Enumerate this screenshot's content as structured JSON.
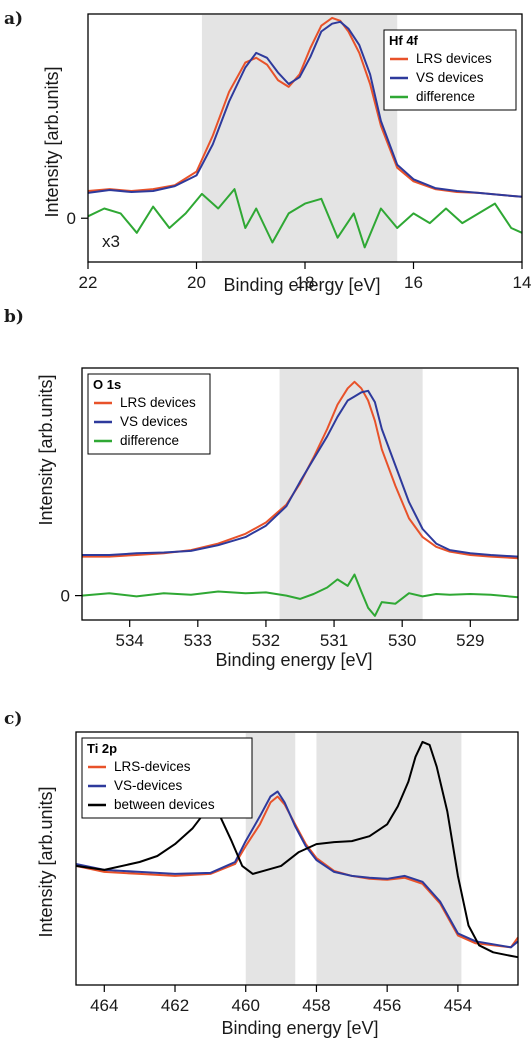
{
  "chart_data": [
    {
      "panel": "a)",
      "type": "line",
      "title": "Hf 4f",
      "xlabel": "Binding energy [eV]",
      "ylabel": "Intensity [arb.units]",
      "xlim": [
        22,
        14
      ],
      "ylim": [
        -0.45,
        2.1
      ],
      "x_ticks": [
        22,
        20,
        18,
        16,
        14
      ],
      "y_ticks": [
        {
          "value": 0,
          "label": "0"
        }
      ],
      "annotation": "x3",
      "shaded_ranges": [
        [
          19.9,
          16.3
        ]
      ],
      "series": [
        {
          "name": "LRS devices",
          "color": "#e8522a",
          "x": [
            22,
            21.6,
            21.2,
            20.8,
            20.4,
            20.0,
            19.7,
            19.4,
            19.1,
            18.9,
            18.7,
            18.5,
            18.3,
            18.1,
            17.9,
            17.7,
            17.5,
            17.35,
            17.2,
            17.0,
            16.8,
            16.6,
            16.3,
            16.0,
            15.6,
            15.2,
            14.8,
            14.4,
            14.0
          ],
          "y": [
            0.28,
            0.3,
            0.28,
            0.3,
            0.34,
            0.48,
            0.85,
            1.3,
            1.6,
            1.65,
            1.58,
            1.42,
            1.35,
            1.48,
            1.75,
            1.98,
            2.06,
            2.03,
            1.92,
            1.7,
            1.38,
            0.95,
            0.52,
            0.38,
            0.3,
            0.27,
            0.26,
            0.24,
            0.22
          ]
        },
        {
          "name": "VS devices",
          "color": "#2e3a9c",
          "x": [
            22,
            21.6,
            21.2,
            20.8,
            20.4,
            20.0,
            19.7,
            19.4,
            19.1,
            18.9,
            18.7,
            18.5,
            18.3,
            18.1,
            17.9,
            17.7,
            17.5,
            17.35,
            17.2,
            17.0,
            16.8,
            16.6,
            16.3,
            16.0,
            15.6,
            15.2,
            14.8,
            14.4,
            14.0
          ],
          "y": [
            0.26,
            0.29,
            0.27,
            0.28,
            0.33,
            0.44,
            0.76,
            1.2,
            1.55,
            1.7,
            1.65,
            1.5,
            1.38,
            1.45,
            1.66,
            1.92,
            2.0,
            2.02,
            1.95,
            1.78,
            1.48,
            1.0,
            0.55,
            0.4,
            0.31,
            0.28,
            0.26,
            0.24,
            0.22
          ]
        },
        {
          "name": "difference",
          "color": "#2fa834",
          "x": [
            22,
            21.7,
            21.4,
            21.1,
            20.8,
            20.5,
            20.2,
            19.9,
            19.6,
            19.3,
            19.1,
            18.9,
            18.6,
            18.3,
            18.0,
            17.7,
            17.4,
            17.1,
            16.9,
            16.6,
            16.3,
            16.0,
            15.7,
            15.4,
            15.1,
            14.8,
            14.5,
            14.2,
            14.0
          ],
          "y": [
            0.02,
            0.1,
            0.05,
            -0.15,
            0.12,
            -0.1,
            0.05,
            0.25,
            0.1,
            0.3,
            -0.1,
            0.1,
            -0.25,
            0.05,
            0.15,
            0.2,
            -0.2,
            0.05,
            -0.3,
            0.1,
            -0.1,
            0.05,
            -0.05,
            0.1,
            -0.05,
            0.05,
            0.15,
            -0.1,
            -0.15
          ]
        }
      ]
    },
    {
      "panel": "b)",
      "type": "line",
      "title": "O 1s",
      "xlabel": "Binding energy [eV]",
      "ylabel": "Intensity [arb.units]",
      "xlim": [
        534.7,
        528.3
      ],
      "ylim": [
        -0.3,
        2.8
      ],
      "x_ticks": [
        534,
        533,
        532,
        531,
        530,
        529
      ],
      "y_ticks": [
        {
          "value": 0,
          "label": "0"
        }
      ],
      "shaded_ranges": [
        [
          531.8,
          529.7
        ]
      ],
      "series": [
        {
          "name": "LRS devices",
          "color": "#e8522a",
          "x": [
            534.7,
            534.3,
            533.9,
            533.5,
            533.1,
            532.7,
            532.3,
            532.0,
            531.7,
            531.5,
            531.3,
            531.1,
            530.95,
            530.8,
            530.7,
            530.6,
            530.5,
            530.4,
            530.3,
            530.1,
            529.9,
            529.7,
            529.5,
            529.3,
            529.0,
            528.7,
            528.3
          ],
          "y": [
            0.48,
            0.48,
            0.5,
            0.52,
            0.56,
            0.64,
            0.76,
            0.9,
            1.12,
            1.38,
            1.7,
            2.05,
            2.35,
            2.55,
            2.63,
            2.55,
            2.4,
            2.15,
            1.8,
            1.35,
            0.95,
            0.72,
            0.6,
            0.54,
            0.5,
            0.48,
            0.46
          ]
        },
        {
          "name": "VS devices",
          "color": "#2e3a9c",
          "x": [
            534.7,
            534.3,
            533.9,
            533.5,
            533.1,
            532.7,
            532.3,
            532.0,
            531.7,
            531.5,
            531.3,
            531.1,
            530.95,
            530.8,
            530.7,
            530.6,
            530.5,
            530.4,
            530.3,
            530.1,
            529.9,
            529.7,
            529.5,
            529.3,
            529.0,
            528.7,
            528.3
          ],
          "y": [
            0.5,
            0.5,
            0.52,
            0.53,
            0.55,
            0.62,
            0.72,
            0.86,
            1.1,
            1.4,
            1.68,
            1.96,
            2.2,
            2.4,
            2.45,
            2.5,
            2.52,
            2.38,
            2.05,
            1.6,
            1.15,
            0.82,
            0.64,
            0.56,
            0.52,
            0.5,
            0.48
          ]
        },
        {
          "name": "difference",
          "color": "#2fa834",
          "x": [
            534.7,
            534.3,
            533.9,
            533.5,
            533.1,
            532.7,
            532.3,
            532.0,
            531.7,
            531.5,
            531.3,
            531.1,
            530.95,
            530.8,
            530.7,
            530.6,
            530.5,
            530.4,
            530.3,
            530.1,
            529.9,
            529.7,
            529.5,
            529.3,
            529.0,
            528.7,
            528.3
          ],
          "y": [
            0.0,
            0.03,
            -0.01,
            0.03,
            0.01,
            0.05,
            0.03,
            0.04,
            0.0,
            -0.04,
            0.02,
            0.1,
            0.2,
            0.12,
            0.26,
            0.05,
            -0.15,
            -0.25,
            -0.08,
            -0.1,
            0.03,
            -0.01,
            0.02,
            0.01,
            0.02,
            0.01,
            -0.02
          ]
        }
      ]
    },
    {
      "panel": "c)",
      "type": "line",
      "title": "Ti 2p",
      "xlabel": "Binding energy [eV]",
      "ylabel": "Intensity [arb.units]",
      "xlim": [
        464.8,
        452.3
      ],
      "ylim": [
        0,
        2.55
      ],
      "x_ticks": [
        464,
        462,
        460,
        458,
        456,
        454
      ],
      "y_ticks": [],
      "shaded_ranges": [
        [
          460.0,
          458.6
        ],
        [
          458.0,
          453.9
        ]
      ],
      "series": [
        {
          "name": "LRS-devices",
          "color": "#e8522a",
          "x": [
            464.8,
            464.0,
            463.0,
            462.0,
            461.0,
            460.3,
            460.0,
            459.6,
            459.3,
            459.1,
            458.9,
            458.6,
            458.3,
            458.0,
            457.5,
            457.0,
            456.5,
            456.0,
            455.5,
            455.0,
            454.5,
            454.0,
            453.5,
            453.0,
            452.5,
            452.3
          ],
          "y": [
            1.2,
            1.14,
            1.12,
            1.1,
            1.12,
            1.22,
            1.4,
            1.62,
            1.84,
            1.9,
            1.82,
            1.62,
            1.42,
            1.28,
            1.15,
            1.1,
            1.07,
            1.06,
            1.08,
            1.02,
            0.82,
            0.5,
            0.42,
            0.4,
            0.38,
            0.48
          ]
        },
        {
          "name": "VS-devices",
          "color": "#2e3a9c",
          "x": [
            464.8,
            464.0,
            463.0,
            462.0,
            461.0,
            460.3,
            460.0,
            459.6,
            459.3,
            459.1,
            458.9,
            458.6,
            458.3,
            458.0,
            457.5,
            457.0,
            456.5,
            456.0,
            455.5,
            455.0,
            454.5,
            454.0,
            453.5,
            453.0,
            452.5,
            452.3
          ],
          "y": [
            1.22,
            1.16,
            1.14,
            1.12,
            1.13,
            1.24,
            1.45,
            1.7,
            1.9,
            1.95,
            1.84,
            1.6,
            1.4,
            1.26,
            1.14,
            1.1,
            1.08,
            1.07,
            1.1,
            1.04,
            0.84,
            0.52,
            0.44,
            0.41,
            0.38,
            0.44
          ]
        },
        {
          "name": "between devices",
          "color": "#000000",
          "x": [
            464.8,
            464.0,
            463.0,
            462.5,
            462.0,
            461.5,
            461.2,
            460.9,
            460.7,
            460.4,
            460.1,
            459.8,
            459.5,
            459.0,
            458.5,
            458.0,
            457.5,
            457.0,
            456.5,
            456.0,
            455.7,
            455.4,
            455.2,
            455.0,
            454.8,
            454.6,
            454.3,
            454.0,
            453.7,
            453.4,
            453.0,
            452.6,
            452.3
          ],
          "y": [
            1.2,
            1.16,
            1.24,
            1.3,
            1.42,
            1.58,
            1.72,
            1.78,
            1.68,
            1.45,
            1.2,
            1.12,
            1.15,
            1.2,
            1.34,
            1.42,
            1.44,
            1.45,
            1.5,
            1.62,
            1.8,
            2.05,
            2.3,
            2.45,
            2.42,
            2.2,
            1.75,
            1.1,
            0.6,
            0.4,
            0.33,
            0.3,
            0.28
          ]
        }
      ]
    }
  ]
}
